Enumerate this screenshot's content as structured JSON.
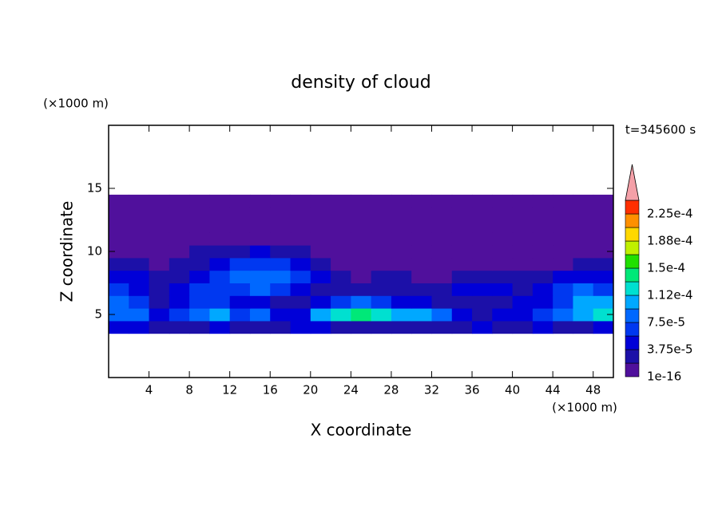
{
  "chart_data": {
    "type": "contour",
    "title": "density of cloud",
    "xlabel": "X coordinate",
    "ylabel": "Z coordinate",
    "xunit": "(×1000 m)",
    "yunit": "(×1000 m)",
    "annotation": "t=345600 s",
    "xlim": [
      0,
      50
    ],
    "ylim": [
      0,
      20
    ],
    "xticks": [
      4,
      8,
      12,
      16,
      20,
      24,
      28,
      32,
      36,
      40,
      44,
      48
    ],
    "yticks": [
      5,
      10,
      15
    ],
    "x": [
      1,
      3,
      5,
      7,
      9,
      11,
      13,
      15,
      17,
      19,
      21,
      23,
      25,
      27,
      29,
      31,
      33,
      35,
      37,
      39,
      41,
      43,
      45,
      47,
      49
    ],
    "y": [
      4,
      5,
      6,
      7,
      8,
      9,
      10,
      11,
      12,
      13,
      14
    ],
    "z": [
      [
        4.5e-05,
        4.5e-05,
        2.5e-05,
        2.5e-05,
        2.5e-05,
        4.5e-05,
        2.5e-05,
        2.5e-05,
        2.5e-05,
        4.5e-05,
        4.5e-05,
        2.5e-05,
        2.5e-05,
        2.5e-05,
        2.5e-05,
        2.5e-05,
        2.5e-05,
        2.5e-05,
        4.5e-05,
        2.5e-05,
        2.5e-05,
        4.5e-05,
        2.5e-05,
        2.5e-05,
        4.5e-05
      ],
      [
        8.5e-05,
        8.5e-05,
        4.5e-05,
        6.5e-05,
        8.5e-05,
        0.0001,
        6.5e-05,
        8.5e-05,
        4.5e-05,
        4.5e-05,
        0.0001,
        0.00012,
        0.00014,
        0.00012,
        0.0001,
        0.0001,
        8.5e-05,
        4.5e-05,
        2.5e-05,
        4.5e-05,
        4.5e-05,
        6.5e-05,
        8.5e-05,
        0.0001,
        0.00012
      ],
      [
        8.5e-05,
        6.5e-05,
        2.5e-05,
        4.5e-05,
        6.5e-05,
        6.5e-05,
        4.5e-05,
        4.5e-05,
        2.5e-05,
        2.5e-05,
        4.5e-05,
        6.5e-05,
        8.5e-05,
        6.5e-05,
        4.5e-05,
        4.5e-05,
        2.5e-05,
        2.5e-05,
        2.5e-05,
        2.5e-05,
        4.5e-05,
        4.5e-05,
        6.5e-05,
        0.0001,
        0.0001
      ],
      [
        6.5e-05,
        4.5e-05,
        2.5e-05,
        4.5e-05,
        6.5e-05,
        6.5e-05,
        6.5e-05,
        8.5e-05,
        6.5e-05,
        4.5e-05,
        2.5e-05,
        2.5e-05,
        2.5e-05,
        2.5e-05,
        2.5e-05,
        2.5e-05,
        2.5e-05,
        4.5e-05,
        4.5e-05,
        4.5e-05,
        2.5e-05,
        4.5e-05,
        6.5e-05,
        8.5e-05,
        6.5e-05
      ],
      [
        4.5e-05,
        4.5e-05,
        2.5e-05,
        2.5e-05,
        4.5e-05,
        6.5e-05,
        8.5e-05,
        8.5e-05,
        8.5e-05,
        6.5e-05,
        4.5e-05,
        2.5e-05,
        5e-06,
        2.5e-05,
        2.5e-05,
        5e-06,
        5e-06,
        2.5e-05,
        2.5e-05,
        2.5e-05,
        2.5e-05,
        2.5e-05,
        4.5e-05,
        4.5e-05,
        4.5e-05
      ],
      [
        2.5e-05,
        2.5e-05,
        5e-06,
        2.5e-05,
        2.5e-05,
        4.5e-05,
        6.5e-05,
        6.5e-05,
        6.5e-05,
        4.5e-05,
        2.5e-05,
        5e-06,
        5e-06,
        5e-06,
        5e-06,
        5e-06,
        5e-06,
        5e-06,
        5e-06,
        5e-06,
        5e-06,
        5e-06,
        5e-06,
        2.5e-05,
        2.5e-05
      ],
      [
        5e-06,
        5e-06,
        5e-06,
        5e-06,
        2.5e-05,
        2.5e-05,
        2.5e-05,
        4.5e-05,
        2.5e-05,
        2.5e-05,
        5e-06,
        5e-06,
        5e-06,
        5e-06,
        5e-06,
        5e-06,
        5e-06,
        5e-06,
        5e-06,
        5e-06,
        5e-06,
        5e-06,
        5e-06,
        5e-06,
        5e-06
      ],
      [
        5e-06,
        5e-06,
        5e-06,
        5e-06,
        5e-06,
        5e-06,
        5e-06,
        5e-06,
        5e-06,
        5e-06,
        5e-06,
        5e-06,
        5e-06,
        5e-06,
        5e-06,
        5e-06,
        5e-06,
        5e-06,
        5e-06,
        5e-06,
        5e-06,
        5e-06,
        5e-06,
        5e-06,
        5e-06
      ],
      [
        5e-06,
        5e-06,
        5e-06,
        5e-06,
        5e-06,
        5e-06,
        5e-06,
        5e-06,
        5e-06,
        5e-06,
        5e-06,
        5e-06,
        5e-06,
        5e-06,
        5e-06,
        5e-06,
        5e-06,
        5e-06,
        5e-06,
        5e-06,
        5e-06,
        5e-06,
        5e-06,
        5e-06,
        5e-06
      ],
      [
        5e-06,
        5e-06,
        5e-06,
        5e-06,
        5e-06,
        5e-06,
        5e-06,
        5e-06,
        5e-06,
        5e-06,
        5e-06,
        5e-06,
        5e-06,
        5e-06,
        5e-06,
        5e-06,
        5e-06,
        5e-06,
        5e-06,
        5e-06,
        5e-06,
        5e-06,
        5e-06,
        5e-06,
        5e-06
      ],
      [
        5e-06,
        5e-06,
        5e-06,
        5e-06,
        5e-06,
        5e-06,
        5e-06,
        5e-06,
        5e-06,
        5e-06,
        5e-06,
        5e-06,
        5e-06,
        5e-06,
        5e-06,
        5e-06,
        5e-06,
        5e-06,
        5e-06,
        5e-06,
        5e-06,
        5e-06,
        5e-06,
        5e-06,
        5e-06
      ]
    ],
    "levels": [
      {
        "value": 1e-16,
        "label": "1e-16"
      },
      1.875e-05,
      {
        "value": 3.75e-05,
        "label": "3.75e-5"
      },
      5.625e-05,
      {
        "value": 7.5e-05,
        "label": "7.5e-5"
      },
      9.375e-05,
      {
        "value": 0.0001125,
        "label": "1.12e-4"
      },
      0.00013125,
      {
        "value": 0.00015,
        "label": "1.5e-4"
      },
      0.00016875,
      {
        "value": 0.0001875,
        "label": "1.88e-4"
      },
      0.00020625,
      {
        "value": 0.000225,
        "label": "2.25e-4"
      },
      0.00024375
    ],
    "colors": [
      "#50109c",
      "#1c10a8",
      "#0000d8",
      "#0038f0",
      "#0068ff",
      "#00a8ff",
      "#00e0d0",
      "#00e878",
      "#20e000",
      "#c0f000",
      "#ffd800",
      "#ff9000",
      "#ff3000"
    ],
    "extend_color": "#f4a0a8"
  }
}
